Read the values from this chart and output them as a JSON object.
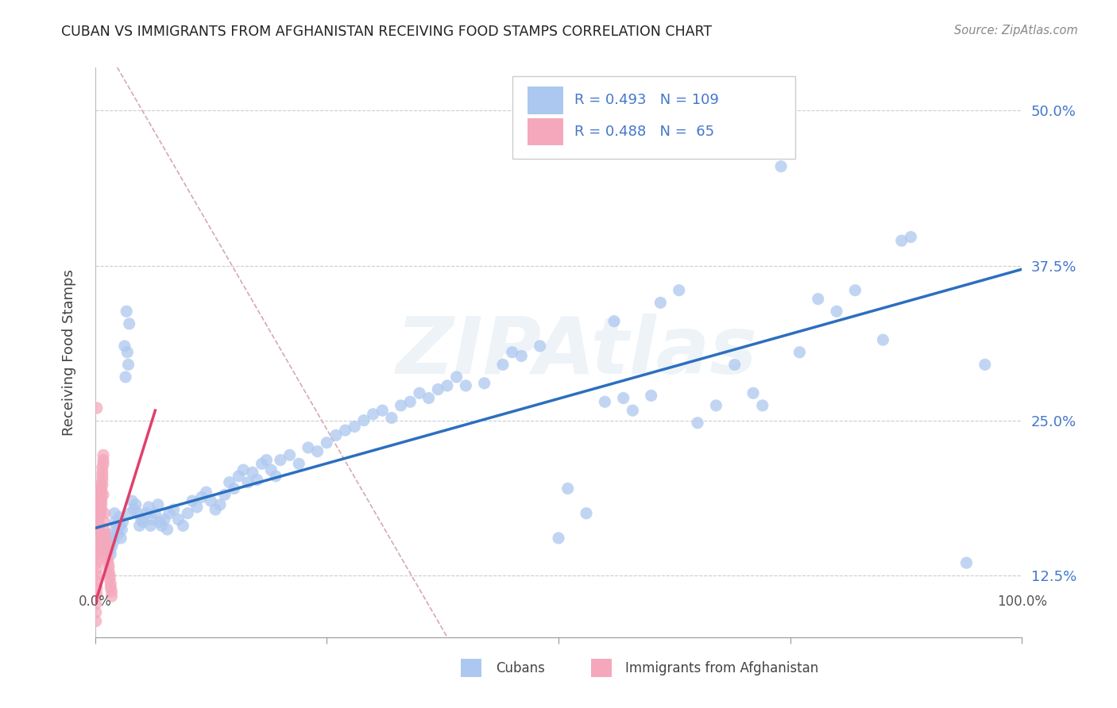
{
  "title": "CUBAN VS IMMIGRANTS FROM AFGHANISTAN RECEIVING FOOD STAMPS CORRELATION CHART",
  "source": "Source: ZipAtlas.com",
  "ylabel": "Receiving Food Stamps",
  "yticks": [
    "12.5%",
    "25.0%",
    "37.5%",
    "50.0%"
  ],
  "ytick_vals": [
    0.125,
    0.25,
    0.375,
    0.5
  ],
  "legend_blue_R": "0.493",
  "legend_blue_N": "109",
  "legend_pink_R": "0.488",
  "legend_pink_N": "65",
  "legend_label_blue": "Cubans",
  "legend_label_pink": "Immigrants from Afghanistan",
  "watermark": "ZIPAtlas",
  "blue_color": "#adc8f0",
  "pink_color": "#f5a8bc",
  "blue_line_color": "#2c6fbe",
  "pink_line_color": "#e0406a",
  "dash_line_color": "#d8a8b0",
  "legend_text_color": "#4477cc",
  "blue_scatter": [
    [
      0.001,
      0.17
    ],
    [
      0.002,
      0.162
    ],
    [
      0.003,
      0.158
    ],
    [
      0.004,
      0.155
    ],
    [
      0.005,
      0.152
    ],
    [
      0.006,
      0.158
    ],
    [
      0.007,
      0.148
    ],
    [
      0.008,
      0.145
    ],
    [
      0.009,
      0.15
    ],
    [
      0.01,
      0.155
    ],
    [
      0.011,
      0.148
    ],
    [
      0.012,
      0.152
    ],
    [
      0.013,
      0.145
    ],
    [
      0.014,
      0.15
    ],
    [
      0.015,
      0.158
    ],
    [
      0.016,
      0.145
    ],
    [
      0.017,
      0.142
    ],
    [
      0.018,
      0.148
    ],
    [
      0.019,
      0.155
    ],
    [
      0.02,
      0.152
    ],
    [
      0.021,
      0.175
    ],
    [
      0.022,
      0.168
    ],
    [
      0.023,
      0.165
    ],
    [
      0.024,
      0.162
    ],
    [
      0.025,
      0.158
    ],
    [
      0.026,
      0.172
    ],
    [
      0.027,
      0.165
    ],
    [
      0.028,
      0.155
    ],
    [
      0.029,
      0.162
    ],
    [
      0.03,
      0.168
    ],
    [
      0.032,
      0.31
    ],
    [
      0.033,
      0.285
    ],
    [
      0.034,
      0.338
    ],
    [
      0.035,
      0.305
    ],
    [
      0.036,
      0.295
    ],
    [
      0.037,
      0.328
    ],
    [
      0.038,
      0.175
    ],
    [
      0.04,
      0.185
    ],
    [
      0.042,
      0.178
    ],
    [
      0.044,
      0.182
    ],
    [
      0.046,
      0.175
    ],
    [
      0.048,
      0.165
    ],
    [
      0.05,
      0.17
    ],
    [
      0.052,
      0.168
    ],
    [
      0.055,
      0.175
    ],
    [
      0.058,
      0.18
    ],
    [
      0.06,
      0.165
    ],
    [
      0.062,
      0.17
    ],
    [
      0.065,
      0.175
    ],
    [
      0.068,
      0.182
    ],
    [
      0.07,
      0.168
    ],
    [
      0.072,
      0.165
    ],
    [
      0.075,
      0.17
    ],
    [
      0.078,
      0.162
    ],
    [
      0.08,
      0.175
    ],
    [
      0.085,
      0.178
    ],
    [
      0.09,
      0.17
    ],
    [
      0.095,
      0.165
    ],
    [
      0.1,
      0.175
    ],
    [
      0.105,
      0.185
    ],
    [
      0.11,
      0.18
    ],
    [
      0.115,
      0.188
    ],
    [
      0.12,
      0.192
    ],
    [
      0.125,
      0.185
    ],
    [
      0.13,
      0.178
    ],
    [
      0.135,
      0.182
    ],
    [
      0.14,
      0.19
    ],
    [
      0.145,
      0.2
    ],
    [
      0.15,
      0.195
    ],
    [
      0.155,
      0.205
    ],
    [
      0.16,
      0.21
    ],
    [
      0.165,
      0.2
    ],
    [
      0.17,
      0.208
    ],
    [
      0.175,
      0.202
    ],
    [
      0.18,
      0.215
    ],
    [
      0.185,
      0.218
    ],
    [
      0.19,
      0.21
    ],
    [
      0.195,
      0.205
    ],
    [
      0.2,
      0.218
    ],
    [
      0.21,
      0.222
    ],
    [
      0.22,
      0.215
    ],
    [
      0.23,
      0.228
    ],
    [
      0.24,
      0.225
    ],
    [
      0.25,
      0.232
    ],
    [
      0.26,
      0.238
    ],
    [
      0.27,
      0.242
    ],
    [
      0.28,
      0.245
    ],
    [
      0.29,
      0.25
    ],
    [
      0.3,
      0.255
    ],
    [
      0.31,
      0.258
    ],
    [
      0.32,
      0.252
    ],
    [
      0.33,
      0.262
    ],
    [
      0.34,
      0.265
    ],
    [
      0.35,
      0.272
    ],
    [
      0.36,
      0.268
    ],
    [
      0.37,
      0.275
    ],
    [
      0.38,
      0.278
    ],
    [
      0.39,
      0.285
    ],
    [
      0.4,
      0.278
    ],
    [
      0.42,
      0.28
    ],
    [
      0.44,
      0.295
    ],
    [
      0.45,
      0.305
    ],
    [
      0.46,
      0.302
    ],
    [
      0.48,
      0.31
    ],
    [
      0.5,
      0.155
    ],
    [
      0.51,
      0.195
    ],
    [
      0.53,
      0.175
    ],
    [
      0.55,
      0.265
    ],
    [
      0.56,
      0.33
    ],
    [
      0.57,
      0.268
    ],
    [
      0.58,
      0.258
    ],
    [
      0.6,
      0.27
    ],
    [
      0.61,
      0.345
    ],
    [
      0.63,
      0.355
    ],
    [
      0.65,
      0.248
    ],
    [
      0.67,
      0.262
    ],
    [
      0.69,
      0.295
    ],
    [
      0.71,
      0.272
    ],
    [
      0.72,
      0.262
    ],
    [
      0.74,
      0.455
    ],
    [
      0.76,
      0.305
    ],
    [
      0.78,
      0.348
    ],
    [
      0.8,
      0.338
    ],
    [
      0.82,
      0.355
    ],
    [
      0.85,
      0.315
    ],
    [
      0.94,
      0.135
    ],
    [
      0.96,
      0.295
    ],
    [
      0.87,
      0.395
    ],
    [
      0.88,
      0.398
    ]
  ],
  "pink_scatter": [
    [
      0.001,
      0.088
    ],
    [
      0.001,
      0.095
    ],
    [
      0.001,
      0.102
    ],
    [
      0.001,
      0.108
    ],
    [
      0.002,
      0.11
    ],
    [
      0.002,
      0.115
    ],
    [
      0.002,
      0.12
    ],
    [
      0.002,
      0.125
    ],
    [
      0.002,
      0.13
    ],
    [
      0.002,
      0.135
    ],
    [
      0.003,
      0.138
    ],
    [
      0.003,
      0.142
    ],
    [
      0.003,
      0.145
    ],
    [
      0.003,
      0.148
    ],
    [
      0.003,
      0.152
    ],
    [
      0.003,
      0.155
    ],
    [
      0.004,
      0.158
    ],
    [
      0.004,
      0.162
    ],
    [
      0.004,
      0.165
    ],
    [
      0.004,
      0.168
    ],
    [
      0.004,
      0.172
    ],
    [
      0.005,
      0.175
    ],
    [
      0.005,
      0.178
    ],
    [
      0.005,
      0.182
    ],
    [
      0.005,
      0.185
    ],
    [
      0.005,
      0.188
    ],
    [
      0.006,
      0.192
    ],
    [
      0.006,
      0.195
    ],
    [
      0.006,
      0.198
    ],
    [
      0.006,
      0.175
    ],
    [
      0.007,
      0.178
    ],
    [
      0.007,
      0.182
    ],
    [
      0.007,
      0.185
    ],
    [
      0.007,
      0.188
    ],
    [
      0.007,
      0.192
    ],
    [
      0.007,
      0.195
    ],
    [
      0.008,
      0.198
    ],
    [
      0.008,
      0.202
    ],
    [
      0.008,
      0.205
    ],
    [
      0.008,
      0.208
    ],
    [
      0.008,
      0.212
    ],
    [
      0.009,
      0.215
    ],
    [
      0.009,
      0.218
    ],
    [
      0.009,
      0.222
    ],
    [
      0.009,
      0.19
    ],
    [
      0.01,
      0.175
    ],
    [
      0.01,
      0.168
    ],
    [
      0.01,
      0.162
    ],
    [
      0.011,
      0.158
    ],
    [
      0.011,
      0.155
    ],
    [
      0.012,
      0.152
    ],
    [
      0.012,
      0.148
    ],
    [
      0.013,
      0.145
    ],
    [
      0.013,
      0.142
    ],
    [
      0.014,
      0.138
    ],
    [
      0.014,
      0.135
    ],
    [
      0.015,
      0.132
    ],
    [
      0.015,
      0.128
    ],
    [
      0.016,
      0.125
    ],
    [
      0.016,
      0.122
    ],
    [
      0.017,
      0.118
    ],
    [
      0.017,
      0.115
    ],
    [
      0.018,
      0.112
    ],
    [
      0.018,
      0.108
    ],
    [
      0.002,
      0.26
    ]
  ],
  "xlim": [
    0.0,
    1.0
  ],
  "ylim": [
    0.075,
    0.535
  ],
  "blue_trend": [
    0.0,
    0.163,
    1.0,
    0.372
  ],
  "pink_trend": [
    0.0,
    0.102,
    0.065,
    0.258
  ],
  "diagonal": [
    0.024,
    0.535,
    0.38,
    0.075
  ]
}
